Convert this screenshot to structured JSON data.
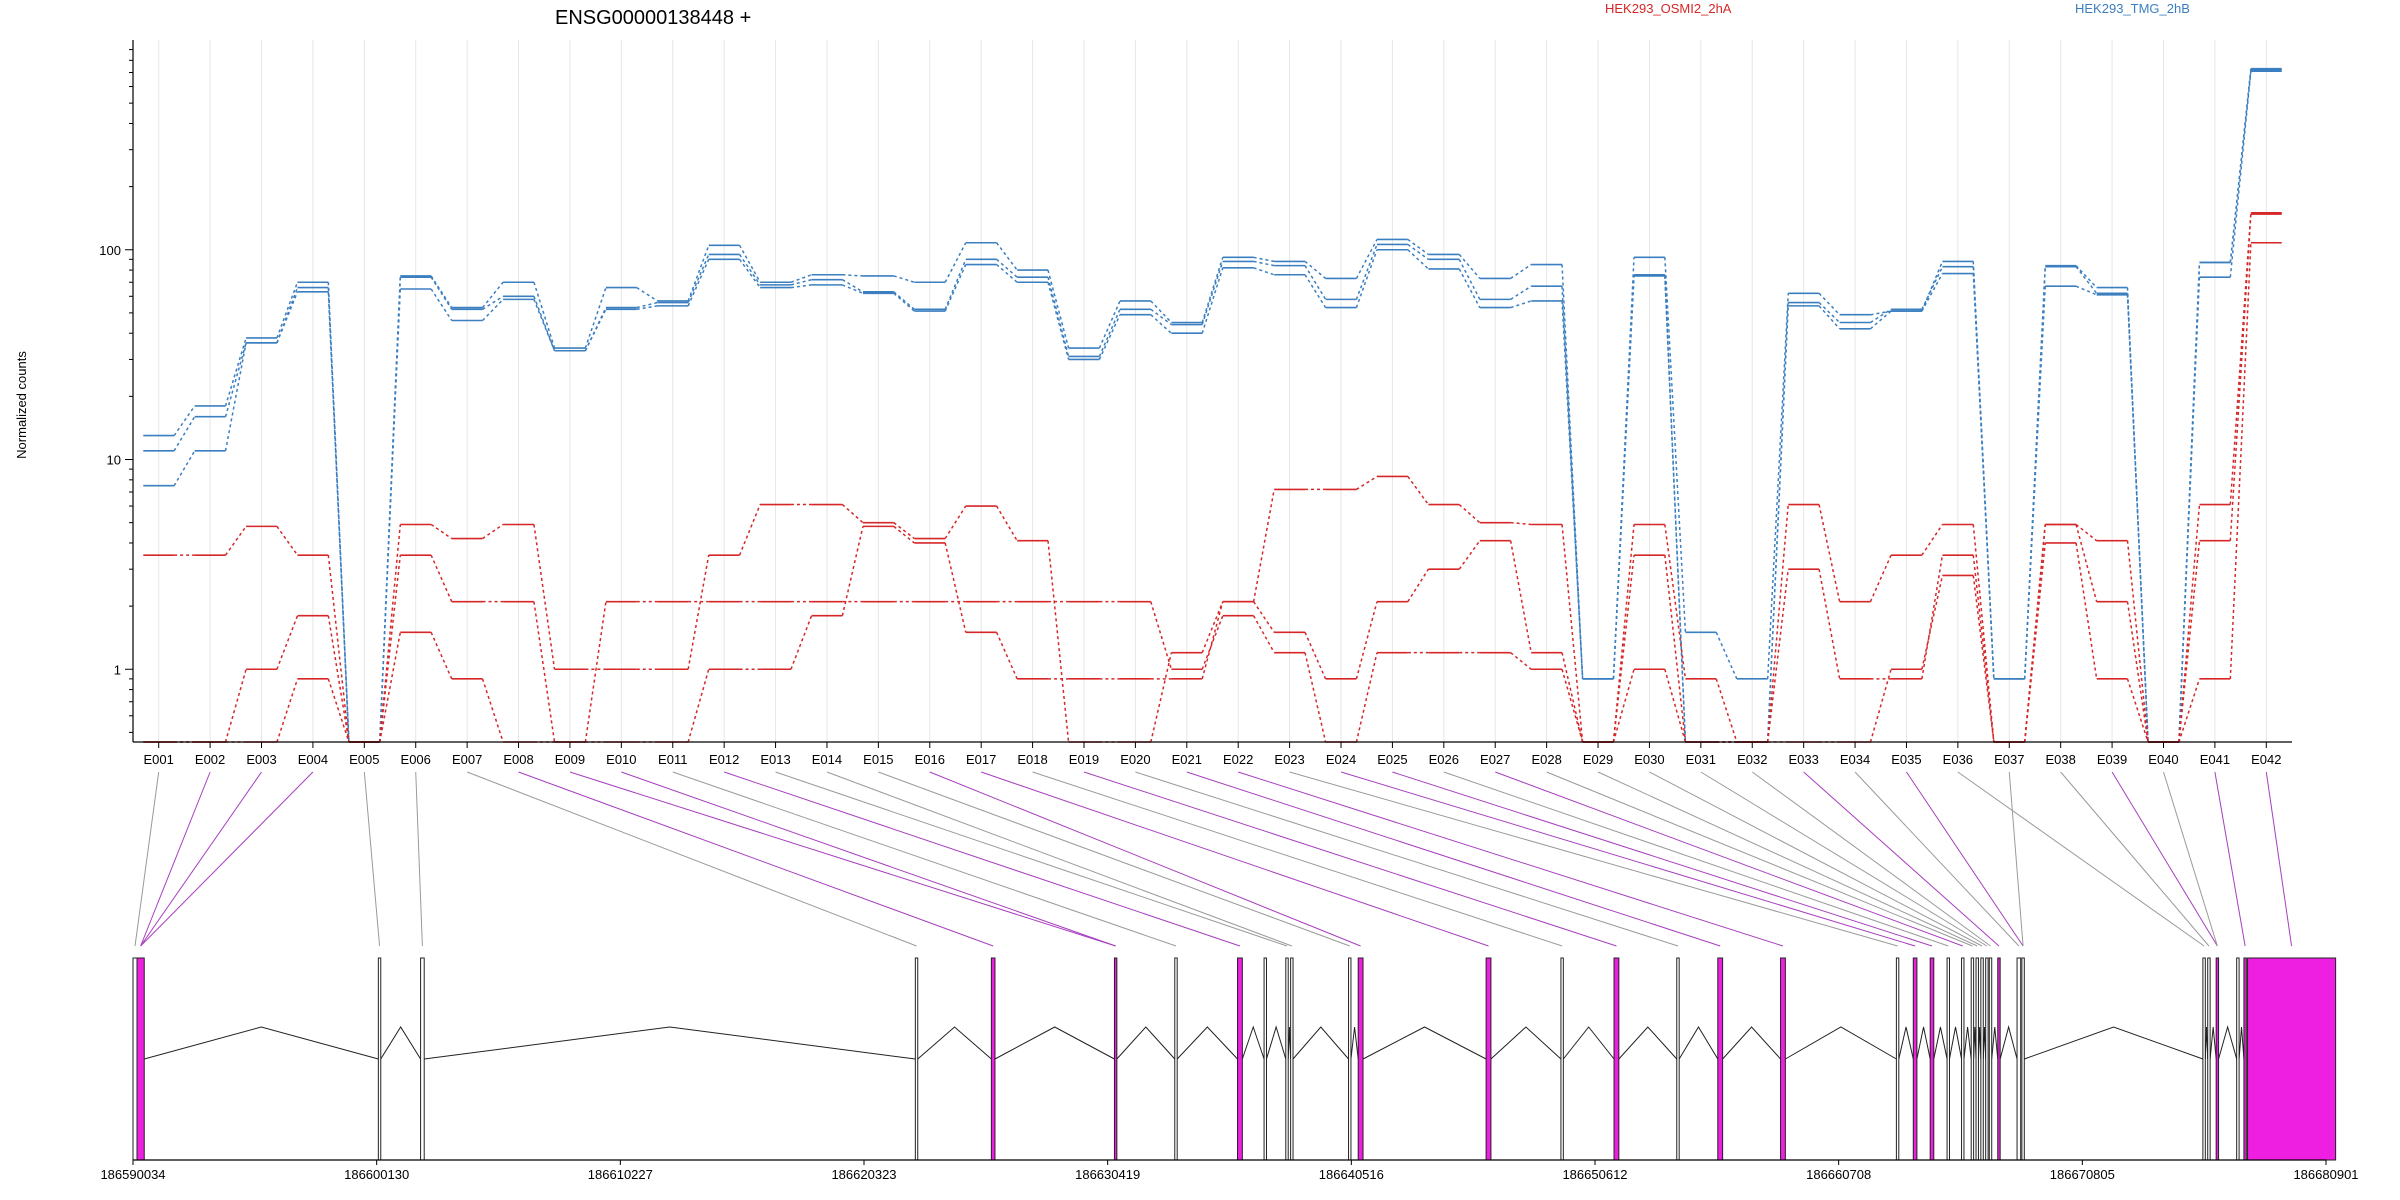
{
  "chart_data": {
    "type": "line",
    "title": "ENSG00000138448 +",
    "ylabel": "Normalized counts",
    "y_scale": "log",
    "ylim": [
      0.45,
      1000
    ],
    "y_ticks": [
      1,
      10,
      100
    ],
    "grid": "vertical",
    "legend": {
      "placement": "top-right"
    },
    "colors": {
      "HEK293_OSMI2_2hA": "#d62728",
      "HEK293_TMG_2hB": "#3b7fc0",
      "highlight": "#ee1fe0",
      "exon": "#ffffff",
      "connector": "#9a9a9a"
    },
    "categories": [
      "E001",
      "E002",
      "E003",
      "E004",
      "E005",
      "E006",
      "E007",
      "E008",
      "E009",
      "E010",
      "E011",
      "E012",
      "E013",
      "E014",
      "E015",
      "E016",
      "E017",
      "E018",
      "E019",
      "E020",
      "E021",
      "E022",
      "E023",
      "E024",
      "E025",
      "E026",
      "E027",
      "E028",
      "E029",
      "E030",
      "E031",
      "E032",
      "E033",
      "E034",
      "E035",
      "E036",
      "E037",
      "E038",
      "E039",
      "E040",
      "E041",
      "E042"
    ],
    "series": [
      {
        "name": "HEK293_TMG_2hB",
        "values": [
          13,
          18,
          38,
          70,
          0.45,
          75,
          53,
          70,
          34,
          66,
          57,
          105,
          70,
          76,
          75,
          70,
          108,
          80,
          34,
          57,
          45,
          92,
          88,
          73,
          112,
          95,
          73,
          85,
          0.9,
          92,
          1.5,
          0.9,
          62,
          49,
          51,
          88,
          0.9,
          84,
          66,
          0.45,
          87,
          730
        ]
      },
      {
        "name": "HEK293_TMG_2hB",
        "values": [
          11,
          16,
          36,
          66,
          0.45,
          74,
          52,
          60,
          33,
          53,
          56,
          95,
          68,
          72,
          63,
          52,
          90,
          74,
          31,
          52,
          44,
          88,
          84,
          58,
          106,
          90,
          58,
          67,
          0.9,
          76,
          0.45,
          0.45,
          56,
          45,
          52,
          83,
          0.9,
          83,
          62,
          0.45,
          87,
          720
        ]
      },
      {
        "name": "HEK293_TMG_2hB",
        "values": [
          7.5,
          11,
          36,
          63,
          0.45,
          65,
          46,
          58,
          33,
          52,
          54,
          90,
          66,
          68,
          62,
          51,
          85,
          70,
          30,
          49,
          40,
          82,
          76,
          53,
          100,
          81,
          53,
          57,
          0.9,
          75,
          0.45,
          0.45,
          54,
          42,
          51,
          77,
          0.9,
          67,
          61,
          0.45,
          74,
          710
        ]
      },
      {
        "name": "HEK293_OSMI2_2hA",
        "values": [
          3.5,
          3.5,
          4.8,
          3.5,
          0.45,
          4.9,
          4.2,
          4.9,
          1.0,
          1.0,
          1.0,
          3.5,
          6.1,
          6.1,
          5.0,
          4.2,
          6.0,
          4.1,
          0.45,
          0.45,
          1.2,
          2.1,
          7.2,
          7.2,
          8.3,
          6.1,
          5.0,
          4.9,
          0.45,
          4.9,
          0.9,
          0.45,
          6.1,
          2.1,
          3.5,
          4.9,
          0.45,
          4.9,
          4.1,
          0.45,
          6.1,
          150
        ]
      },
      {
        "name": "HEK293_OSMI2_2hA",
        "values": [
          0.45,
          0.45,
          1.0,
          1.8,
          0.45,
          3.5,
          2.1,
          2.1,
          0.45,
          0.45,
          0.45,
          1.0,
          1.0,
          1.8,
          4.8,
          4.0,
          1.5,
          0.9,
          0.9,
          0.9,
          0.9,
          2.1,
          1.5,
          0.9,
          2.1,
          3.0,
          4.1,
          1.2,
          0.45,
          3.5,
          0.45,
          0.45,
          3.0,
          0.9,
          0.9,
          3.5,
          0.45,
          4.9,
          2.1,
          0.45,
          4.1,
          148
        ]
      },
      {
        "name": "HEK293_OSMI2_2hA",
        "values": [
          0.45,
          0.45,
          0.45,
          0.9,
          0.45,
          1.5,
          0.9,
          0.45,
          0.45,
          2.1,
          2.1,
          2.1,
          2.1,
          2.1,
          2.1,
          2.1,
          2.1,
          2.1,
          2.1,
          2.1,
          1.0,
          1.8,
          1.2,
          0.45,
          1.2,
          1.2,
          1.2,
          1.0,
          0.45,
          1.0,
          0.45,
          0.45,
          0.45,
          0.45,
          1.0,
          2.8,
          0.45,
          4.0,
          0.9,
          0.45,
          0.9,
          108
        ]
      }
    ],
    "gene_axis": {
      "ticks": [
        "186590034",
        "186600130",
        "186610227",
        "186620323",
        "186630419",
        "186640516",
        "186650612",
        "186660708",
        "186670805",
        "186680901"
      ],
      "exons": [
        [
          186590034,
          186590200,
          false
        ],
        [
          186590200,
          186590500,
          true
        ],
        [
          186600200,
          186600300,
          false
        ],
        [
          186601950,
          186602100,
          false
        ],
        [
          186622450,
          186622550,
          false
        ],
        [
          186625600,
          186625750,
          true
        ],
        [
          186630700,
          186630800,
          true
        ],
        [
          186633200,
          186633300,
          false
        ],
        [
          186635800,
          186636000,
          true
        ],
        [
          186636900,
          186637000,
          false
        ],
        [
          186637800,
          186637900,
          false
        ],
        [
          186638000,
          186638100,
          false
        ],
        [
          186640400,
          186640500,
          false
        ],
        [
          186640800,
          186641000,
          true
        ],
        [
          186646100,
          186646300,
          true
        ],
        [
          186649200,
          186649300,
          false
        ],
        [
          186651400,
          186651600,
          true
        ],
        [
          186654000,
          186654100,
          false
        ],
        [
          186655700,
          186655900,
          true
        ],
        [
          186658300,
          186658500,
          true
        ],
        [
          186663100,
          186663200,
          false
        ],
        [
          186663800,
          186663950,
          true
        ],
        [
          186664500,
          186664650,
          true
        ],
        [
          186665200,
          186665300,
          false
        ],
        [
          186665800,
          186665900,
          false
        ],
        [
          186666200,
          186666300,
          false
        ],
        [
          186666400,
          186666500,
          false
        ],
        [
          186666600,
          186666700,
          false
        ],
        [
          186666800,
          186666900,
          false
        ],
        [
          186666950,
          186667050,
          false
        ],
        [
          186667300,
          186667400,
          true
        ],
        [
          186668100,
          186668250,
          false
        ],
        [
          186668300,
          186668400,
          false
        ],
        [
          186675800,
          186675900,
          false
        ],
        [
          186676000,
          186676100,
          false
        ],
        [
          186676350,
          186676450,
          true
        ],
        [
          186677200,
          186677300,
          false
        ],
        [
          186677500,
          186677600,
          true
        ],
        [
          186677650,
          186681300,
          true
        ]
      ],
      "mapping": [
        [
          0,
          0,
          false
        ],
        [
          1,
          1,
          true
        ],
        [
          2,
          1,
          true
        ],
        [
          3,
          1,
          true
        ],
        [
          4,
          2,
          false
        ],
        [
          5,
          3,
          false
        ],
        [
          6,
          4,
          false
        ],
        [
          7,
          5,
          true
        ],
        [
          8,
          6,
          true
        ],
        [
          9,
          6,
          true
        ],
        [
          10,
          7,
          false
        ],
        [
          11,
          8,
          true
        ],
        [
          12,
          10,
          false
        ],
        [
          13,
          11,
          false
        ],
        [
          14,
          12,
          false
        ],
        [
          15,
          13,
          true
        ],
        [
          16,
          14,
          true
        ],
        [
          17,
          15,
          false
        ],
        [
          18,
          16,
          true
        ],
        [
          19,
          17,
          false
        ],
        [
          20,
          18,
          true
        ],
        [
          21,
          19,
          true
        ],
        [
          22,
          20,
          false
        ],
        [
          23,
          21,
          true
        ],
        [
          24,
          22,
          true
        ],
        [
          25,
          23,
          false
        ],
        [
          26,
          24,
          true
        ],
        [
          27,
          25,
          false
        ],
        [
          28,
          26,
          false
        ],
        [
          29,
          27,
          false
        ],
        [
          30,
          28,
          false
        ],
        [
          31,
          29,
          false
        ],
        [
          32,
          30,
          true
        ],
        [
          33,
          31,
          false
        ],
        [
          34,
          32,
          true
        ],
        [
          35,
          33,
          false
        ],
        [
          36,
          32,
          false
        ],
        [
          37,
          34,
          false
        ],
        [
          38,
          35,
          true
        ],
        [
          39,
          35,
          false
        ],
        [
          40,
          37,
          true
        ],
        [
          41,
          38,
          true
        ]
      ]
    }
  }
}
